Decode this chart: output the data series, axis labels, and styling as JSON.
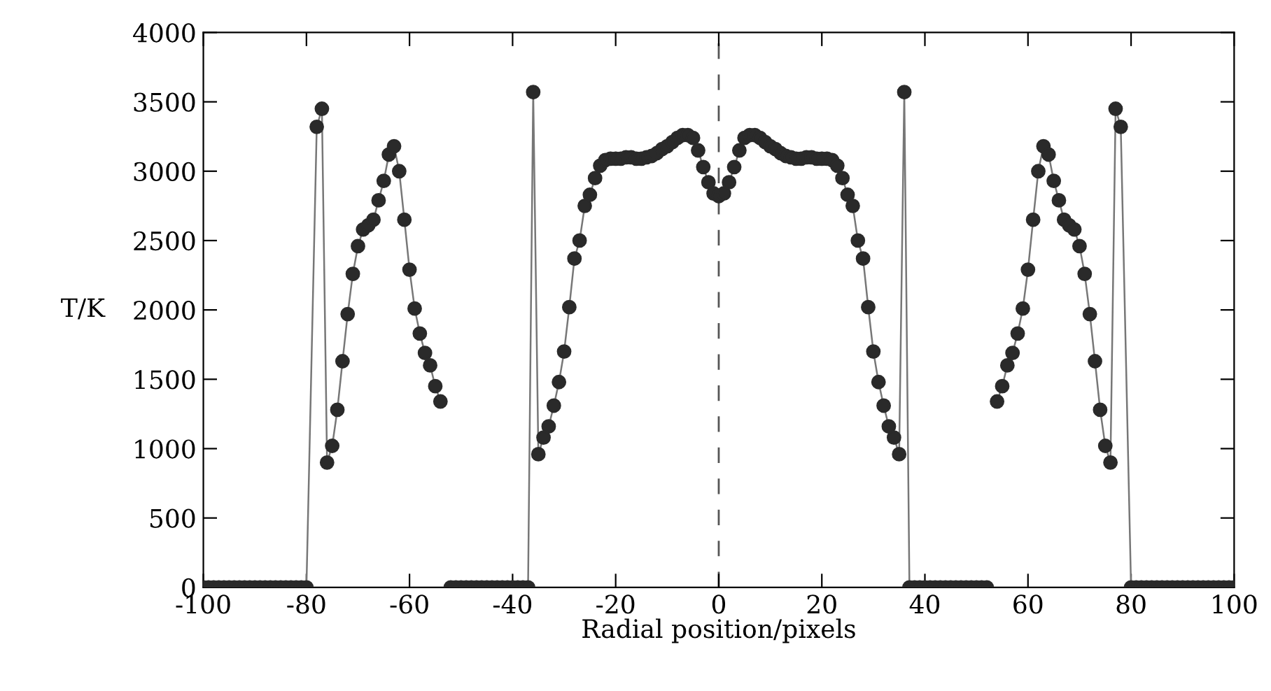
{
  "chart_data": {
    "type": "line",
    "xlabel": "Radial position/pixels",
    "ylabel": "T/K",
    "xlim": [
      -100,
      100
    ],
    "xticks": [
      -100,
      -80,
      -60,
      -40,
      -20,
      0,
      20,
      40,
      60,
      80,
      100
    ],
    "ylim": [
      0,
      4000
    ],
    "yticks": [
      0,
      500,
      1000,
      1500,
      2000,
      2500,
      3000,
      3500,
      4000
    ],
    "grid": false,
    "legend": false,
    "marker": "circle",
    "line_style": "solid",
    "ref_lines": [
      {
        "axis": "x",
        "value": 0,
        "line_style": "dashed",
        "color": "#555555"
      }
    ],
    "series": [
      {
        "color": "#2a2a2a",
        "x": [
          -100,
          -99,
          -98,
          -97,
          -96,
          -95,
          -94,
          -93,
          -92,
          -91,
          -90,
          -89,
          -88,
          -87,
          -86,
          -85,
          -84,
          -83,
          -82,
          -81,
          -80,
          -78,
          -77,
          -76,
          -75,
          -74,
          -73,
          -72,
          -71,
          -70,
          -69,
          -68,
          -67,
          -66,
          -65,
          -64,
          -63,
          -62,
          -61,
          -60,
          -59,
          -58,
          -57,
          -56,
          -55,
          -54,
          -53,
          -52,
          -51,
          -50,
          -49,
          -48,
          -47,
          -46,
          -45,
          -44,
          -43,
          -42,
          -41,
          -40,
          -39,
          -38,
          -37,
          -36,
          -35,
          -34,
          -33,
          -32,
          -31,
          -30,
          -29,
          -28,
          -27,
          -26,
          -25,
          -24,
          -23,
          -22,
          -21,
          -20,
          -19,
          -18,
          -17,
          -16,
          -15,
          -14,
          -13,
          -12,
          -11,
          -10,
          -9,
          -8,
          -7,
          -6,
          -5,
          -4,
          -3,
          -2,
          -1,
          0,
          1,
          2,
          3,
          4,
          5,
          6,
          7,
          8,
          9,
          10,
          11,
          12,
          13,
          14,
          15,
          16,
          17,
          18,
          19,
          20,
          21,
          22,
          23,
          24,
          25,
          26,
          27,
          28,
          29,
          30,
          31,
          32,
          33,
          34,
          35,
          36,
          37,
          38,
          39,
          40,
          41,
          42,
          43,
          44,
          45,
          46,
          47,
          48,
          49,
          50,
          51,
          52,
          53,
          54,
          55,
          56,
          57,
          58,
          59,
          60,
          61,
          62,
          63,
          64,
          65,
          66,
          67,
          68,
          69,
          70,
          71,
          72,
          73,
          74,
          75,
          76,
          77,
          78,
          80,
          81,
          82,
          83,
          84,
          85,
          86,
          87,
          88,
          89,
          90,
          91,
          92,
          93,
          94,
          95,
          96,
          97,
          98,
          99,
          100
        ],
        "values": [
          0,
          0,
          0,
          0,
          0,
          0,
          0,
          0,
          0,
          0,
          0,
          0,
          0,
          0,
          0,
          0,
          0,
          0,
          0,
          0,
          0,
          3320,
          3450,
          900,
          1020,
          1280,
          1630,
          1970,
          2260,
          2460,
          2580,
          2610,
          2650,
          2790,
          2930,
          3120,
          3180,
          3000,
          2650,
          2290,
          2010,
          1830,
          1690,
          1600,
          1450,
          1340,
          null,
          0,
          0,
          0,
          0,
          0,
          0,
          0,
          0,
          0,
          0,
          0,
          0,
          0,
          0,
          0,
          0,
          3570,
          960,
          1080,
          1160,
          1310,
          1480,
          1700,
          2020,
          2370,
          2500,
          2750,
          2830,
          2950,
          3040,
          3080,
          3090,
          3090,
          3090,
          3100,
          3100,
          3090,
          3090,
          3100,
          3110,
          3130,
          3160,
          3180,
          3210,
          3240,
          3260,
          3260,
          3240,
          3150,
          3030,
          2920,
          2840,
          2820,
          2840,
          2920,
          3030,
          3150,
          3240,
          3260,
          3260,
          3240,
          3210,
          3180,
          3160,
          3130,
          3110,
          3100,
          3090,
          3090,
          3100,
          3100,
          3090,
          3090,
          3090,
          3080,
          3040,
          2950,
          2830,
          2750,
          2500,
          2370,
          2020,
          1700,
          1480,
          1310,
          1160,
          1080,
          960,
          3570,
          0,
          0,
          0,
          0,
          0,
          0,
          0,
          0,
          0,
          0,
          0,
          0,
          0,
          0,
          0,
          0,
          null,
          1340,
          1450,
          1600,
          1690,
          1830,
          2010,
          2290,
          2650,
          3000,
          3180,
          3120,
          2930,
          2790,
          2650,
          2610,
          2580,
          2460,
          2260,
          1970,
          1630,
          1280,
          1020,
          900,
          3450,
          3320,
          0,
          0,
          0,
          0,
          0,
          0,
          0,
          0,
          0,
          0,
          0,
          0,
          0,
          0,
          0,
          0,
          0,
          0,
          0,
          0,
          0
        ]
      }
    ]
  }
}
